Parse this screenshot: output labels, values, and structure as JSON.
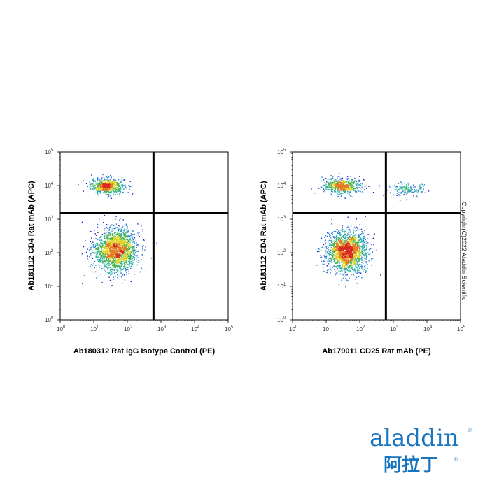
{
  "chart_data": [
    {
      "type": "scatter",
      "scale": "log",
      "xlim": [
        1,
        100000
      ],
      "ylim": [
        1,
        100000
      ],
      "xlabel": "Ab180312 Rat IgG Isotype Control (PE)",
      "ylabel": "Ab181112 CD4 Rat mAb (APC)",
      "x_tick_labels": [
        "10",
        "10",
        "10",
        "10",
        "10",
        "10"
      ],
      "x_tick_exponents": [
        "0",
        "1",
        "2",
        "3",
        "4",
        "5"
      ],
      "y_tick_labels": [
        "10",
        "10",
        "10",
        "10",
        "10",
        "10"
      ],
      "y_tick_exponents": [
        "0",
        "1",
        "2",
        "3",
        "4",
        "5"
      ],
      "quadrant_gate": {
        "x": 600,
        "y": 1500
      },
      "populations": [
        {
          "name": "CD4+ cluster",
          "center": [
            25,
            10000
          ],
          "spread_log": [
            0.25,
            0.12
          ],
          "count": 650
        },
        {
          "name": "CD4- cluster",
          "center": [
            45,
            120
          ],
          "spread_log": [
            0.32,
            0.32
          ],
          "count": 1900
        }
      ]
    },
    {
      "type": "scatter",
      "scale": "log",
      "xlim": [
        1,
        100000
      ],
      "ylim": [
        1,
        100000
      ],
      "xlabel": "Ab179011 CD25 Rat mAb (PE)",
      "ylabel": "Ab181112 CD4 Rat mAb (APC)",
      "x_tick_labels": [
        "10",
        "10",
        "10",
        "10",
        "10",
        "10"
      ],
      "x_tick_exponents": [
        "0",
        "1",
        "2",
        "3",
        "4",
        "5"
      ],
      "y_tick_labels": [
        "10",
        "10",
        "10",
        "10",
        "10",
        "10"
      ],
      "y_tick_exponents": [
        "0",
        "1",
        "2",
        "3",
        "4",
        "5"
      ],
      "quadrant_gate": {
        "x": 600,
        "y": 1500
      },
      "populations": [
        {
          "name": "CD4+ CD25- cluster",
          "center": [
            30,
            10000
          ],
          "spread_log": [
            0.3,
            0.11
          ],
          "count": 600
        },
        {
          "name": "CD4+ CD25+ cluster",
          "center": [
            2500,
            8000
          ],
          "spread_log": [
            0.28,
            0.1
          ],
          "count": 170
        },
        {
          "name": "CD4- cluster",
          "center": [
            40,
            110
          ],
          "spread_log": [
            0.3,
            0.3
          ],
          "count": 1900
        }
      ]
    }
  ],
  "density_colors": [
    "#1c1cc8",
    "#2a7fd6",
    "#25b0a0",
    "#46b34a",
    "#e0d21e",
    "#e07a1c",
    "#d8261e"
  ],
  "copyright": "Copyright(C)2022 Aladdin Scientific",
  "logo": {
    "text": "aladdin",
    "cn_text": "阿拉丁",
    "reg_mark": "®",
    "color": "#1a75bf"
  }
}
